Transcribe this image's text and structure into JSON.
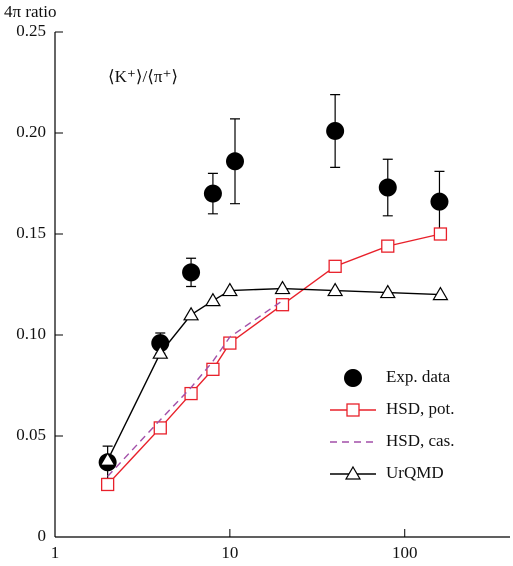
{
  "chart_data": {
    "type": "line",
    "y_label": "4π ratio",
    "annotation": "⟨K⁺⟩/⟨π⁺⟩",
    "x_scale": "log",
    "xlim": [
      1,
      400
    ],
    "xticks": [
      1,
      10,
      100
    ],
    "ylim": [
      0,
      0.25
    ],
    "yticks": [
      0,
      0.05,
      {
        "value": 0.1,
        "label": "0.10"
      },
      0.15,
      {
        "value": 0.2,
        "label": "0.20"
      },
      0.25
    ],
    "legend": "lower right",
    "series": [
      {
        "name": "Exp. data",
        "color": "#000000",
        "marker": "circle",
        "line": "none",
        "x": [
          2,
          4,
          6,
          8,
          10.7,
          40,
          80,
          158
        ],
        "values": [
          0.037,
          0.096,
          0.131,
          0.17,
          0.186,
          0.201,
          0.173,
          0.166
        ],
        "errors": [
          0.008,
          0.005,
          0.007,
          0.01,
          0.021,
          0.018,
          0.014,
          0.015
        ]
      },
      {
        "name": "HSD, pot.",
        "color": "#e8202a",
        "marker": "square",
        "line": "solid",
        "x": [
          2,
          4,
          6,
          8,
          10,
          20,
          40,
          80,
          160
        ],
        "values": [
          0.026,
          0.054,
          0.071,
          0.083,
          0.096,
          0.115,
          0.134,
          0.144,
          0.15
        ]
      },
      {
        "name": "HSD, cas.",
        "color": "#a24fa8",
        "marker": "none",
        "line": "dashed",
        "x": [
          2,
          4,
          6,
          8,
          10,
          20
        ],
        "values": [
          0.03,
          0.058,
          0.074,
          0.087,
          0.099,
          0.117
        ]
      },
      {
        "name": "UrQMD",
        "color": "#000000",
        "marker": "triangle",
        "line": "solid",
        "x": [
          2,
          4,
          6,
          8,
          10,
          20,
          40,
          80,
          160
        ],
        "values": [
          0.038,
          0.091,
          0.11,
          0.117,
          0.122,
          0.123,
          0.122,
          0.121,
          0.12
        ]
      }
    ]
  }
}
